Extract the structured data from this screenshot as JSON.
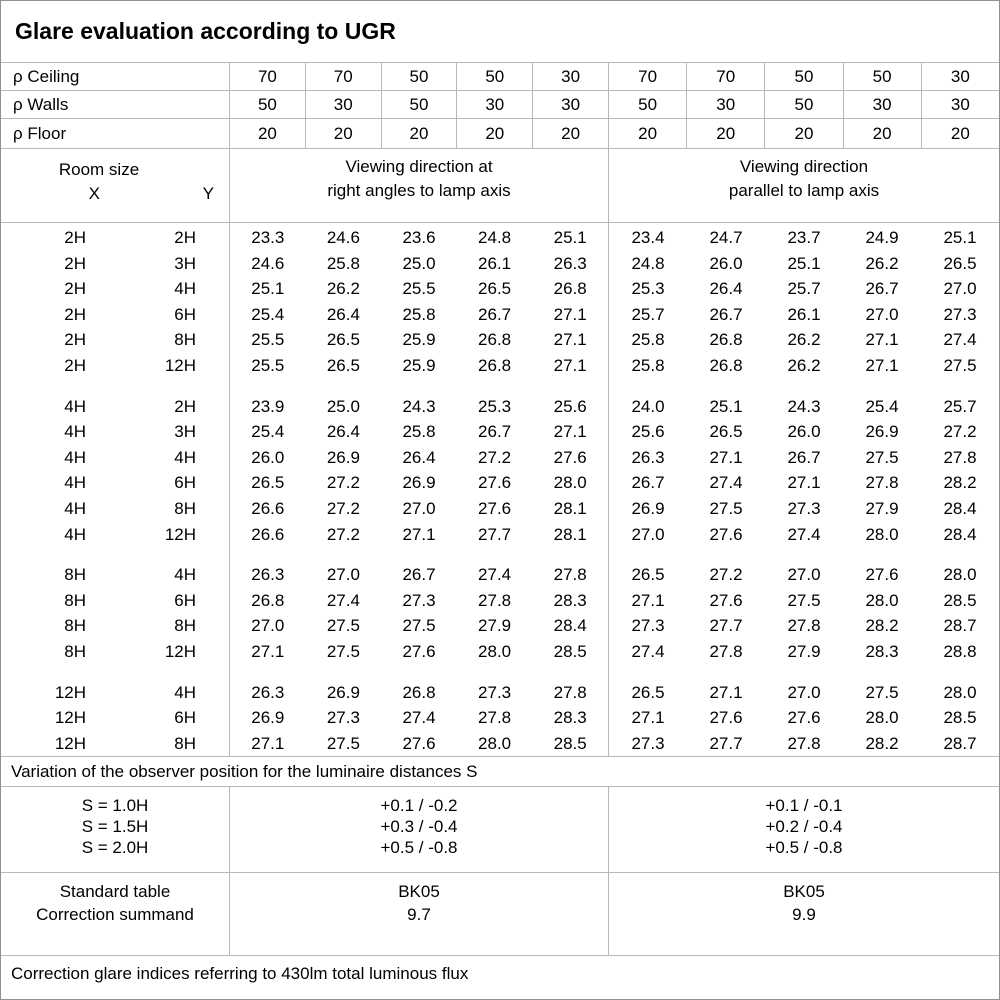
{
  "title": "Glare evaluation according to UGR",
  "reflectance_rows": [
    {
      "label": "ρ Ceiling",
      "values": [
        "70",
        "70",
        "50",
        "50",
        "30",
        "70",
        "70",
        "50",
        "50",
        "30"
      ]
    },
    {
      "label": "ρ Walls",
      "values": [
        "50",
        "30",
        "50",
        "30",
        "30",
        "50",
        "30",
        "50",
        "30",
        "30"
      ]
    },
    {
      "label": "ρ Floor",
      "values": [
        "20",
        "20",
        "20",
        "20",
        "20",
        "20",
        "20",
        "20",
        "20",
        "20"
      ]
    }
  ],
  "room_size_header": {
    "title": "Room size",
    "x_label": "X",
    "y_label": "Y"
  },
  "section_headers": {
    "left": [
      "Viewing direction at",
      "right angles to lamp axis"
    ],
    "right": [
      "Viewing direction",
      "parallel to lamp axis"
    ]
  },
  "data_blocks": [
    {
      "rows": [
        {
          "x": "2H",
          "y": "2H",
          "left": [
            "23.3",
            "24.6",
            "23.6",
            "24.8",
            "25.1"
          ],
          "right": [
            "23.4",
            "24.7",
            "23.7",
            "24.9",
            "25.1"
          ]
        },
        {
          "x": "2H",
          "y": "3H",
          "left": [
            "24.6",
            "25.8",
            "25.0",
            "26.1",
            "26.3"
          ],
          "right": [
            "24.8",
            "26.0",
            "25.1",
            "26.2",
            "26.5"
          ]
        },
        {
          "x": "2H",
          "y": "4H",
          "left": [
            "25.1",
            "26.2",
            "25.5",
            "26.5",
            "26.8"
          ],
          "right": [
            "25.3",
            "26.4",
            "25.7",
            "26.7",
            "27.0"
          ]
        },
        {
          "x": "2H",
          "y": "6H",
          "left": [
            "25.4",
            "26.4",
            "25.8",
            "26.7",
            "27.1"
          ],
          "right": [
            "25.7",
            "26.7",
            "26.1",
            "27.0",
            "27.3"
          ]
        },
        {
          "x": "2H",
          "y": "8H",
          "left": [
            "25.5",
            "26.5",
            "25.9",
            "26.8",
            "27.1"
          ],
          "right": [
            "25.8",
            "26.8",
            "26.2",
            "27.1",
            "27.4"
          ]
        },
        {
          "x": "2H",
          "y": "12H",
          "left": [
            "25.5",
            "26.5",
            "25.9",
            "26.8",
            "27.1"
          ],
          "right": [
            "25.8",
            "26.8",
            "26.2",
            "27.1",
            "27.5"
          ]
        }
      ]
    },
    {
      "rows": [
        {
          "x": "4H",
          "y": "2H",
          "left": [
            "23.9",
            "25.0",
            "24.3",
            "25.3",
            "25.6"
          ],
          "right": [
            "24.0",
            "25.1",
            "24.3",
            "25.4",
            "25.7"
          ]
        },
        {
          "x": "4H",
          "y": "3H",
          "left": [
            "25.4",
            "26.4",
            "25.8",
            "26.7",
            "27.1"
          ],
          "right": [
            "25.6",
            "26.5",
            "26.0",
            "26.9",
            "27.2"
          ]
        },
        {
          "x": "4H",
          "y": "4H",
          "left": [
            "26.0",
            "26.9",
            "26.4",
            "27.2",
            "27.6"
          ],
          "right": [
            "26.3",
            "27.1",
            "26.7",
            "27.5",
            "27.8"
          ]
        },
        {
          "x": "4H",
          "y": "6H",
          "left": [
            "26.5",
            "27.2",
            "26.9",
            "27.6",
            "28.0"
          ],
          "right": [
            "26.7",
            "27.4",
            "27.1",
            "27.8",
            "28.2"
          ]
        },
        {
          "x": "4H",
          "y": "8H",
          "left": [
            "26.6",
            "27.2",
            "27.0",
            "27.6",
            "28.1"
          ],
          "right": [
            "26.9",
            "27.5",
            "27.3",
            "27.9",
            "28.4"
          ]
        },
        {
          "x": "4H",
          "y": "12H",
          "left": [
            "26.6",
            "27.2",
            "27.1",
            "27.7",
            "28.1"
          ],
          "right": [
            "27.0",
            "27.6",
            "27.4",
            "28.0",
            "28.4"
          ]
        }
      ]
    },
    {
      "rows": [
        {
          "x": "8H",
          "y": "4H",
          "left": [
            "26.3",
            "27.0",
            "26.7",
            "27.4",
            "27.8"
          ],
          "right": [
            "26.5",
            "27.2",
            "27.0",
            "27.6",
            "28.0"
          ]
        },
        {
          "x": "8H",
          "y": "6H",
          "left": [
            "26.8",
            "27.4",
            "27.3",
            "27.8",
            "28.3"
          ],
          "right": [
            "27.1",
            "27.6",
            "27.5",
            "28.0",
            "28.5"
          ]
        },
        {
          "x": "8H",
          "y": "8H",
          "left": [
            "27.0",
            "27.5",
            "27.5",
            "27.9",
            "28.4"
          ],
          "right": [
            "27.3",
            "27.7",
            "27.8",
            "28.2",
            "28.7"
          ]
        },
        {
          "x": "8H",
          "y": "12H",
          "left": [
            "27.1",
            "27.5",
            "27.6",
            "28.0",
            "28.5"
          ],
          "right": [
            "27.4",
            "27.8",
            "27.9",
            "28.3",
            "28.8"
          ]
        }
      ]
    },
    {
      "rows": [
        {
          "x": "12H",
          "y": "4H",
          "left": [
            "26.3",
            "26.9",
            "26.8",
            "27.3",
            "27.8"
          ],
          "right": [
            "26.5",
            "27.1",
            "27.0",
            "27.5",
            "28.0"
          ]
        },
        {
          "x": "12H",
          "y": "6H",
          "left": [
            "26.9",
            "27.3",
            "27.4",
            "27.8",
            "28.3"
          ],
          "right": [
            "27.1",
            "27.6",
            "27.6",
            "28.0",
            "28.5"
          ]
        },
        {
          "x": "12H",
          "y": "8H",
          "left": [
            "27.1",
            "27.5",
            "27.6",
            "28.0",
            "28.5"
          ],
          "right": [
            "27.3",
            "27.7",
            "27.8",
            "28.2",
            "28.7"
          ]
        }
      ]
    }
  ],
  "variation_note": "Variation of the observer position for the luminaire distances S",
  "s_block": {
    "labels": [
      "S = 1.0H",
      "S = 1.5H",
      "S = 2.0H"
    ],
    "left_values": [
      "+0.1 / -0.2",
      "+0.3 / -0.4",
      "+0.5 / -0.8"
    ],
    "right_values": [
      "+0.1 / -0.1",
      "+0.2 / -0.4",
      "+0.5 / -0.8"
    ]
  },
  "summary": {
    "row_labels": [
      "Standard table",
      "Correction summand"
    ],
    "left_values": [
      "BK05",
      "9.7"
    ],
    "right_values": [
      "BK05",
      "9.9"
    ]
  },
  "footer_note": "Correction glare indices referring to 430lm total luminous flux"
}
